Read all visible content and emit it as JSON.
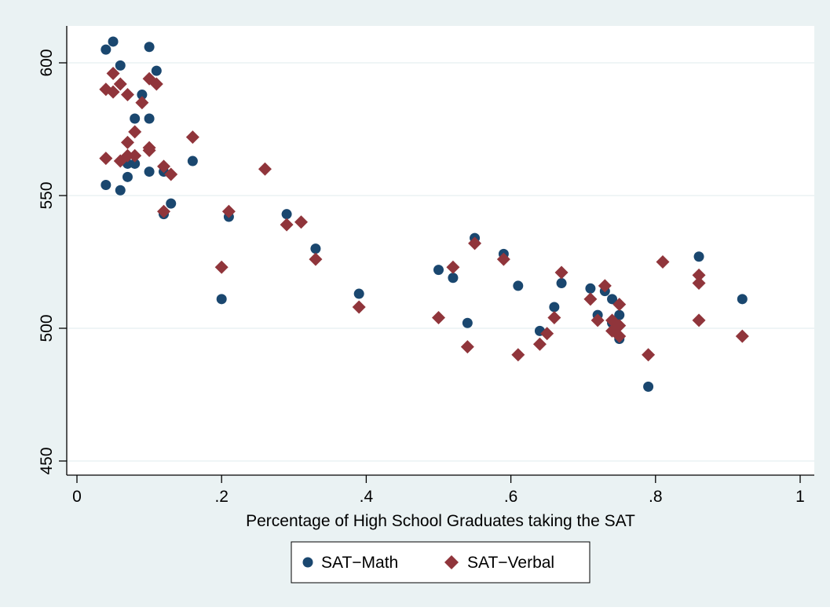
{
  "chart_data": {
    "type": "scatter",
    "title": "",
    "xlabel": "Percentage of High School Graduates taking the SAT",
    "ylabel": "",
    "xlim": [
      0,
      1
    ],
    "ylim": [
      450,
      610
    ],
    "x_ticks": [
      0,
      0.2,
      0.4,
      0.6,
      0.8,
      1
    ],
    "x_tick_labels": [
      "0",
      ".2",
      ".4",
      ".6",
      ".8",
      "1"
    ],
    "y_ticks": [
      450,
      500,
      550,
      600
    ],
    "y_tick_labels": [
      "450",
      "500",
      "550",
      "600"
    ],
    "grid": "horizontal",
    "legend": "bottom",
    "series": [
      {
        "name": "SAT−Math",
        "color": "#1a476f",
        "marker": "circle",
        "points": [
          [
            0.04,
            605
          ],
          [
            0.05,
            608
          ],
          [
            0.06,
            599
          ],
          [
            0.1,
            606
          ],
          [
            0.11,
            597
          ],
          [
            0.09,
            588
          ],
          [
            0.08,
            579
          ],
          [
            0.1,
            579
          ],
          [
            0.04,
            554
          ],
          [
            0.06,
            552
          ],
          [
            0.07,
            557
          ],
          [
            0.07,
            562
          ],
          [
            0.08,
            562
          ],
          [
            0.1,
            559
          ],
          [
            0.12,
            559
          ],
          [
            0.13,
            547
          ],
          [
            0.12,
            543
          ],
          [
            0.16,
            563
          ],
          [
            0.21,
            542
          ],
          [
            0.2,
            511
          ],
          [
            0.29,
            543
          ],
          [
            0.33,
            530
          ],
          [
            0.39,
            513
          ],
          [
            0.5,
            522
          ],
          [
            0.52,
            519
          ],
          [
            0.54,
            502
          ],
          [
            0.55,
            534
          ],
          [
            0.59,
            528
          ],
          [
            0.61,
            516
          ],
          [
            0.64,
            499
          ],
          [
            0.66,
            508
          ],
          [
            0.67,
            517
          ],
          [
            0.71,
            515
          ],
          [
            0.72,
            505
          ],
          [
            0.73,
            514
          ],
          [
            0.74,
            511
          ],
          [
            0.74,
            502
          ],
          [
            0.75,
            505
          ],
          [
            0.75,
            496
          ],
          [
            0.79,
            478
          ],
          [
            0.86,
            527
          ],
          [
            0.92,
            511
          ]
        ]
      },
      {
        "name": "SAT−Verbal",
        "color": "#90353b",
        "marker": "diamond",
        "points": [
          [
            0.04,
            590
          ],
          [
            0.05,
            596
          ],
          [
            0.05,
            589
          ],
          [
            0.06,
            592
          ],
          [
            0.07,
            588
          ],
          [
            0.09,
            585
          ],
          [
            0.1,
            594
          ],
          [
            0.11,
            592
          ],
          [
            0.04,
            564
          ],
          [
            0.06,
            563
          ],
          [
            0.07,
            565
          ],
          [
            0.07,
            570
          ],
          [
            0.08,
            574
          ],
          [
            0.08,
            565
          ],
          [
            0.1,
            568
          ],
          [
            0.1,
            567
          ],
          [
            0.12,
            561
          ],
          [
            0.13,
            558
          ],
          [
            0.12,
            544
          ],
          [
            0.16,
            572
          ],
          [
            0.2,
            523
          ],
          [
            0.21,
            544
          ],
          [
            0.26,
            560
          ],
          [
            0.29,
            539
          ],
          [
            0.31,
            540
          ],
          [
            0.33,
            526
          ],
          [
            0.39,
            508
          ],
          [
            0.5,
            504
          ],
          [
            0.52,
            523
          ],
          [
            0.54,
            493
          ],
          [
            0.55,
            532
          ],
          [
            0.59,
            526
          ],
          [
            0.61,
            490
          ],
          [
            0.64,
            494
          ],
          [
            0.65,
            498
          ],
          [
            0.66,
            504
          ],
          [
            0.67,
            521
          ],
          [
            0.71,
            511
          ],
          [
            0.72,
            503
          ],
          [
            0.73,
            516
          ],
          [
            0.74,
            503
          ],
          [
            0.74,
            499
          ],
          [
            0.75,
            509
          ],
          [
            0.75,
            501
          ],
          [
            0.75,
            497
          ],
          [
            0.79,
            490
          ],
          [
            0.81,
            525
          ],
          [
            0.86,
            520
          ],
          [
            0.86,
            517
          ],
          [
            0.86,
            503
          ],
          [
            0.92,
            497
          ]
        ]
      }
    ]
  }
}
